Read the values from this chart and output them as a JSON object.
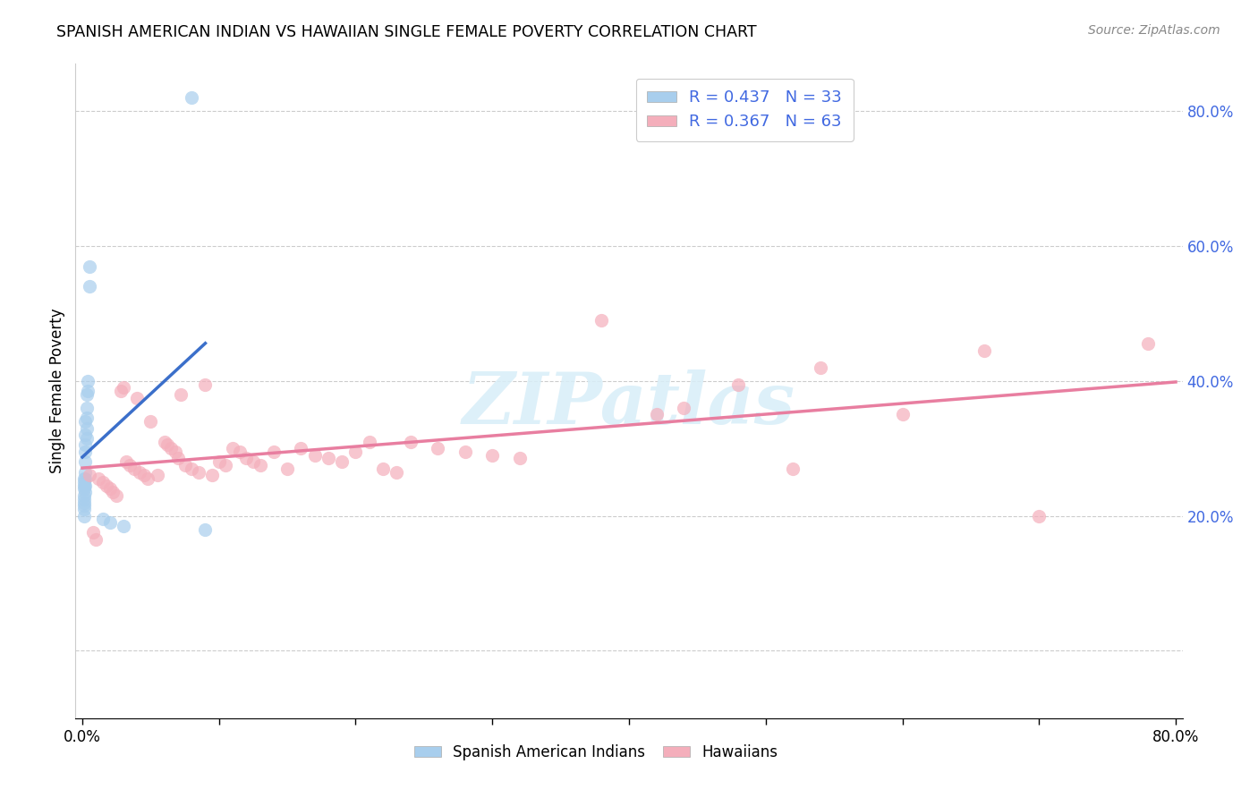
{
  "title": "SPANISH AMERICAN INDIAN VS HAWAIIAN SINGLE FEMALE POVERTY CORRELATION CHART",
  "source": "Source: ZipAtlas.com",
  "ylabel": "Single Female Poverty",
  "legend_label_blue": "Spanish American Indians",
  "legend_label_pink": "Hawaiians",
  "blue_scatter_color": "#A8CEED",
  "pink_scatter_color": "#F4AEBB",
  "blue_line_color": "#3B6FCA",
  "pink_line_color": "#E87EA0",
  "right_axis_color": "#4169E1",
  "xlim": [
    -0.005,
    0.805
  ],
  "ylim": [
    -0.1,
    0.87
  ],
  "yticks_right": [
    0.2,
    0.4,
    0.6,
    0.8
  ],
  "blue_x": [
    0.001,
    0.001,
    0.001,
    0.001,
    0.001,
    0.001,
    0.001,
    0.001,
    0.001,
    0.001,
    0.002,
    0.002,
    0.002,
    0.002,
    0.002,
    0.002,
    0.002,
    0.002,
    0.002,
    0.003,
    0.003,
    0.003,
    0.003,
    0.003,
    0.004,
    0.004,
    0.005,
    0.005,
    0.015,
    0.02,
    0.03,
    0.08,
    0.09
  ],
  "blue_y": [
    0.255,
    0.25,
    0.245,
    0.24,
    0.23,
    0.225,
    0.22,
    0.215,
    0.21,
    0.2,
    0.34,
    0.32,
    0.305,
    0.295,
    0.28,
    0.265,
    0.255,
    0.245,
    0.235,
    0.38,
    0.36,
    0.345,
    0.33,
    0.315,
    0.4,
    0.385,
    0.54,
    0.57,
    0.195,
    0.19,
    0.185,
    0.82,
    0.18
  ],
  "pink_x": [
    0.005,
    0.008,
    0.01,
    0.012,
    0.015,
    0.018,
    0.02,
    0.022,
    0.025,
    0.028,
    0.03,
    0.032,
    0.035,
    0.038,
    0.04,
    0.042,
    0.045,
    0.048,
    0.05,
    0.055,
    0.06,
    0.062,
    0.065,
    0.068,
    0.07,
    0.072,
    0.075,
    0.08,
    0.085,
    0.09,
    0.095,
    0.1,
    0.105,
    0.11,
    0.115,
    0.12,
    0.125,
    0.13,
    0.14,
    0.15,
    0.16,
    0.17,
    0.18,
    0.19,
    0.2,
    0.21,
    0.22,
    0.23,
    0.24,
    0.26,
    0.28,
    0.3,
    0.32,
    0.38,
    0.42,
    0.44,
    0.48,
    0.52,
    0.54,
    0.6,
    0.66,
    0.7,
    0.78
  ],
  "pink_y": [
    0.26,
    0.175,
    0.165,
    0.255,
    0.25,
    0.245,
    0.24,
    0.235,
    0.23,
    0.385,
    0.39,
    0.28,
    0.275,
    0.27,
    0.375,
    0.265,
    0.26,
    0.255,
    0.34,
    0.26,
    0.31,
    0.305,
    0.3,
    0.295,
    0.285,
    0.38,
    0.275,
    0.27,
    0.265,
    0.395,
    0.26,
    0.28,
    0.275,
    0.3,
    0.295,
    0.285,
    0.28,
    0.275,
    0.295,
    0.27,
    0.3,
    0.29,
    0.285,
    0.28,
    0.295,
    0.31,
    0.27,
    0.265,
    0.31,
    0.3,
    0.295,
    0.29,
    0.285,
    0.49,
    0.35,
    0.36,
    0.395,
    0.27,
    0.42,
    0.35,
    0.445,
    0.2,
    0.455
  ]
}
